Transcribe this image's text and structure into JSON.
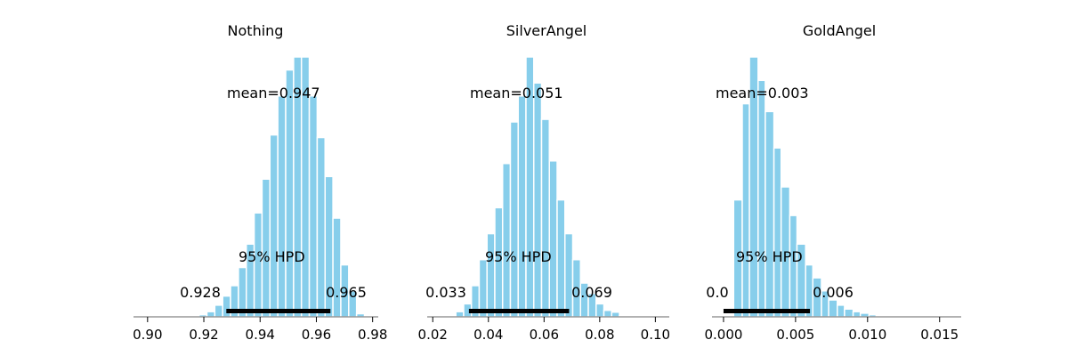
{
  "chart_data": [
    {
      "type": "histogram",
      "title": "Nothing",
      "xlim": [
        0.895,
        0.982
      ],
      "x_ticks": [
        0.9,
        0.92,
        0.94,
        0.96,
        0.98
      ],
      "x_tick_labels": [
        "0.90",
        "0.92",
        "0.94",
        "0.96",
        "0.98"
      ],
      "bins": [
        {
          "x0": 0.9155,
          "x1": 0.9183,
          "height": 0.004
        },
        {
          "x0": 0.9183,
          "x1": 0.9211,
          "height": 0.008
        },
        {
          "x0": 0.9211,
          "x1": 0.9239,
          "height": 0.02
        },
        {
          "x0": 0.9239,
          "x1": 0.9267,
          "height": 0.045
        },
        {
          "x0": 0.9267,
          "x1": 0.9295,
          "height": 0.08
        },
        {
          "x0": 0.9295,
          "x1": 0.9323,
          "height": 0.12
        },
        {
          "x0": 0.9323,
          "x1": 0.9351,
          "height": 0.19
        },
        {
          "x0": 0.9351,
          "x1": 0.9379,
          "height": 0.28
        },
        {
          "x0": 0.9379,
          "x1": 0.9407,
          "height": 0.4
        },
        {
          "x0": 0.9407,
          "x1": 0.9435,
          "height": 0.53
        },
        {
          "x0": 0.9435,
          "x1": 0.9463,
          "height": 0.7
        },
        {
          "x0": 0.9463,
          "x1": 0.9491,
          "height": 0.85
        },
        {
          "x0": 0.9491,
          "x1": 0.9519,
          "height": 0.95
        },
        {
          "x0": 0.9519,
          "x1": 0.9547,
          "height": 1.0
        },
        {
          "x0": 0.9547,
          "x1": 0.9575,
          "height": 1.0
        },
        {
          "x0": 0.9575,
          "x1": 0.9603,
          "height": 0.85
        },
        {
          "x0": 0.9603,
          "x1": 0.9631,
          "height": 0.69
        },
        {
          "x0": 0.9631,
          "x1": 0.9659,
          "height": 0.54
        },
        {
          "x0": 0.9659,
          "x1": 0.9687,
          "height": 0.38
        },
        {
          "x0": 0.9687,
          "x1": 0.9715,
          "height": 0.2
        },
        {
          "x0": 0.9715,
          "x1": 0.9743,
          "height": 0.1
        },
        {
          "x0": 0.9743,
          "x1": 0.9771,
          "height": 0.012
        }
      ],
      "mean_label": "mean=0.947",
      "hpd_label": "95% HPD",
      "hpd": [
        0.928,
        0.965
      ],
      "hpd_low_label": "0.928",
      "hpd_high_label": "0.965"
    },
    {
      "type": "histogram",
      "title": "SilverAngel",
      "xlim": [
        0.018,
        0.105
      ],
      "x_ticks": [
        0.02,
        0.04,
        0.06,
        0.08,
        0.1
      ],
      "x_tick_labels": [
        "0.02",
        "0.04",
        "0.06",
        "0.08",
        "0.10"
      ],
      "bins": [
        {
          "x0": 0.0227,
          "x1": 0.0241,
          "height": 0.003
        },
        {
          "x0": 0.0283,
          "x1": 0.0311,
          "height": 0.02
        },
        {
          "x0": 0.0311,
          "x1": 0.0339,
          "height": 0.05
        },
        {
          "x0": 0.0339,
          "x1": 0.0367,
          "height": 0.12
        },
        {
          "x0": 0.0367,
          "x1": 0.0395,
          "height": 0.22
        },
        {
          "x0": 0.0395,
          "x1": 0.0423,
          "height": 0.32
        },
        {
          "x0": 0.0423,
          "x1": 0.0451,
          "height": 0.42
        },
        {
          "x0": 0.0451,
          "x1": 0.0479,
          "height": 0.59
        },
        {
          "x0": 0.0479,
          "x1": 0.0507,
          "height": 0.75
        },
        {
          "x0": 0.0507,
          "x1": 0.0535,
          "height": 0.85
        },
        {
          "x0": 0.0535,
          "x1": 0.0563,
          "height": 1.0
        },
        {
          "x0": 0.0563,
          "x1": 0.0591,
          "height": 0.9
        },
        {
          "x0": 0.0591,
          "x1": 0.0619,
          "height": 0.76
        },
        {
          "x0": 0.0619,
          "x1": 0.0647,
          "height": 0.6
        },
        {
          "x0": 0.0647,
          "x1": 0.0675,
          "height": 0.45
        },
        {
          "x0": 0.0675,
          "x1": 0.0703,
          "height": 0.32
        },
        {
          "x0": 0.0703,
          "x1": 0.0731,
          "height": 0.22
        },
        {
          "x0": 0.0731,
          "x1": 0.0759,
          "height": 0.13
        },
        {
          "x0": 0.0759,
          "x1": 0.0787,
          "height": 0.09
        },
        {
          "x0": 0.0787,
          "x1": 0.0815,
          "height": 0.05
        },
        {
          "x0": 0.0815,
          "x1": 0.0843,
          "height": 0.025
        },
        {
          "x0": 0.0843,
          "x1": 0.0871,
          "height": 0.018
        },
        {
          "x0": 0.0871,
          "x1": 0.0899,
          "height": 0.005
        }
      ],
      "mean_label": "mean=0.051",
      "hpd_label": "95% HPD",
      "hpd": [
        0.033,
        0.069
      ],
      "hpd_low_label": "0.033",
      "hpd_high_label": "0.069"
    },
    {
      "type": "histogram",
      "title": "GoldAngel",
      "xlim": [
        -0.0008,
        0.0165
      ],
      "x_ticks": [
        0.0,
        0.005,
        0.01,
        0.015
      ],
      "x_tick_labels": [
        "0.000",
        "0.005",
        "0.010",
        "0.015"
      ],
      "bins": [
        {
          "x0": 0.0002,
          "x1": 0.0007,
          "height": 0.003
        },
        {
          "x0": 0.0007,
          "x1": 0.0013,
          "height": 0.45
        },
        {
          "x0": 0.0013,
          "x1": 0.0018,
          "height": 0.82
        },
        {
          "x0": 0.0018,
          "x1": 0.0024,
          "height": 1.0
        },
        {
          "x0": 0.0024,
          "x1": 0.0029,
          "height": 0.91
        },
        {
          "x0": 0.0029,
          "x1": 0.0035,
          "height": 0.79
        },
        {
          "x0": 0.0035,
          "x1": 0.004,
          "height": 0.65
        },
        {
          "x0": 0.004,
          "x1": 0.0046,
          "height": 0.5
        },
        {
          "x0": 0.0046,
          "x1": 0.0051,
          "height": 0.39
        },
        {
          "x0": 0.0051,
          "x1": 0.0057,
          "height": 0.28
        },
        {
          "x0": 0.0057,
          "x1": 0.0062,
          "height": 0.2
        },
        {
          "x0": 0.0062,
          "x1": 0.0068,
          "height": 0.15
        },
        {
          "x0": 0.0068,
          "x1": 0.0073,
          "height": 0.1
        },
        {
          "x0": 0.0073,
          "x1": 0.0079,
          "height": 0.065
        },
        {
          "x0": 0.0079,
          "x1": 0.0084,
          "height": 0.045
        },
        {
          "x0": 0.0084,
          "x1": 0.009,
          "height": 0.03
        },
        {
          "x0": 0.009,
          "x1": 0.0095,
          "height": 0.02
        },
        {
          "x0": 0.0095,
          "x1": 0.0101,
          "height": 0.014
        },
        {
          "x0": 0.0101,
          "x1": 0.0106,
          "height": 0.008
        },
        {
          "x0": 0.0106,
          "x1": 0.0112,
          "height": 0.004
        }
      ],
      "mean_label": "mean=0.003",
      "hpd_label": "95% HPD",
      "hpd": [
        0.0,
        0.006
      ],
      "hpd_low_label": "0.0",
      "hpd_high_label": "0.006"
    }
  ],
  "colors": {
    "bar": "#87ceeb",
    "bar_edge": "#ffffff",
    "hpd_line": "#000000",
    "axis": "#666666"
  }
}
